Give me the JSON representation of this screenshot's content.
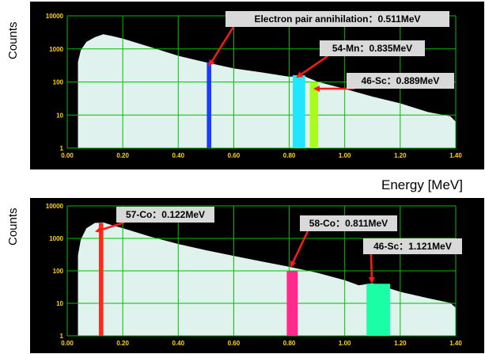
{
  "axis": {
    "ylabel": "Counts",
    "xlabel": "Energy [MeV]"
  },
  "colors": {
    "background": "#000000",
    "grid": "#00c000",
    "fill": "#dff2ee",
    "tick": "#ffd400",
    "arrow": "#ff1a1a",
    "callout": "#d9d9d9"
  },
  "chart_data": [
    {
      "type": "area",
      "xlabel": "",
      "ylabel": "Counts",
      "xlim": [
        0.0,
        1.4
      ],
      "ylim": [
        1,
        10000
      ],
      "yscale": "log",
      "grid": true,
      "x_ticks": [
        "0.00",
        "0.20",
        "0.40",
        "0.60",
        "0.80",
        "1.00",
        "1.20",
        "1.40"
      ],
      "y_ticks": [
        "1",
        "10",
        "100",
        "1000",
        "10000"
      ],
      "spectrum": {
        "x": [
          0.04,
          0.05,
          0.07,
          0.1,
          0.13,
          0.16,
          0.2,
          0.3,
          0.4,
          0.5,
          0.6,
          0.7,
          0.8,
          0.85,
          0.9,
          1.0,
          1.1,
          1.2,
          1.3,
          1.38,
          1.4
        ],
        "y": [
          400,
          900,
          1600,
          2200,
          2700,
          2400,
          2000,
          1100,
          600,
          380,
          250,
          190,
          140,
          150,
          100,
          60,
          35,
          22,
          12,
          9,
          6
        ]
      },
      "peaks": [
        {
          "label": "Electron pair annihilation：0.511MeV",
          "x": 0.511,
          "width": 0.016,
          "height": 400,
          "color": "#1a3cff"
        },
        {
          "label": "54-Mn：0.835MeV",
          "x": 0.835,
          "width": 0.045,
          "height": 160,
          "color": "#22e6ff"
        },
        {
          "label": "46-Sc：0.889MeV",
          "x": 0.889,
          "width": 0.03,
          "height": 100,
          "color": "#a6ff1a"
        }
      ]
    },
    {
      "type": "area",
      "xlabel": "Energy [MeV]",
      "ylabel": "Counts",
      "xlim": [
        0.0,
        1.4
      ],
      "ylim": [
        1,
        10000
      ],
      "yscale": "log",
      "grid": true,
      "x_ticks": [
        "0.00",
        "0.20",
        "0.40",
        "0.60",
        "0.80",
        "1.00",
        "1.20",
        "1.40"
      ],
      "y_ticks": [
        "1",
        "10",
        "100",
        "1000",
        "10000"
      ],
      "spectrum": {
        "x": [
          0.04,
          0.05,
          0.07,
          0.1,
          0.13,
          0.16,
          0.2,
          0.3,
          0.4,
          0.5,
          0.6,
          0.7,
          0.8,
          0.9,
          1.0,
          1.05,
          1.1,
          1.15,
          1.2,
          1.3,
          1.38,
          1.4
        ],
        "y": [
          300,
          900,
          2000,
          2900,
          3000,
          2500,
          2000,
          1100,
          650,
          420,
          280,
          190,
          130,
          85,
          50,
          35,
          40,
          30,
          22,
          14,
          10,
          7
        ]
      },
      "peaks": [
        {
          "label": "57-Co：0.122MeV",
          "x": 0.122,
          "width": 0.016,
          "height": 3000,
          "color": "#ff2a1a"
        },
        {
          "label": "58-Co：0.811MeV",
          "x": 0.811,
          "width": 0.04,
          "height": 100,
          "color": "#ff2a8c"
        },
        {
          "label": "46-Sc：1.121MeV",
          "x": 1.121,
          "width": 0.085,
          "height": 40,
          "color": "#1affa6"
        }
      ]
    }
  ]
}
